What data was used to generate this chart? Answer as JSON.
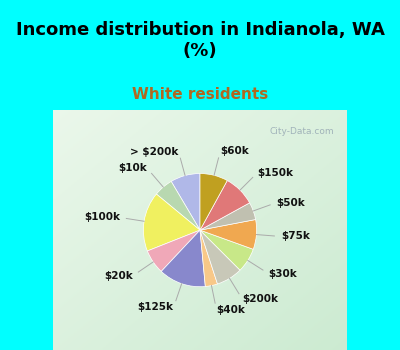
{
  "title": "Income distribution in Indianola, WA\n(%)",
  "subtitle": "White residents",
  "title_color": "#000000",
  "subtitle_color": "#b06820",
  "background_fig": "#00ffff",
  "watermark": "City-Data.com",
  "labels": [
    "> $200k",
    "$10k",
    "$100k",
    "$20k",
    "$125k",
    "$40k",
    "$200k",
    "$30k",
    "$75k",
    "$50k",
    "$150k",
    "$60k"
  ],
  "values": [
    8.5,
    5.5,
    17.0,
    7.0,
    13.5,
    3.5,
    7.5,
    7.0,
    8.5,
    5.0,
    9.0,
    8.0
  ],
  "colors": [
    "#b0b8e8",
    "#b8d8b0",
    "#f0f060",
    "#f0a8b8",
    "#8888cc",
    "#f8c888",
    "#c8c8b8",
    "#c8e888",
    "#f0a850",
    "#c0c0b0",
    "#e07878",
    "#c0a020"
  ],
  "startangle": 90,
  "figsize": [
    4.0,
    3.5
  ],
  "dpi": 100,
  "title_fontsize": 13,
  "subtitle_fontsize": 11,
  "label_fontsize": 7.5
}
